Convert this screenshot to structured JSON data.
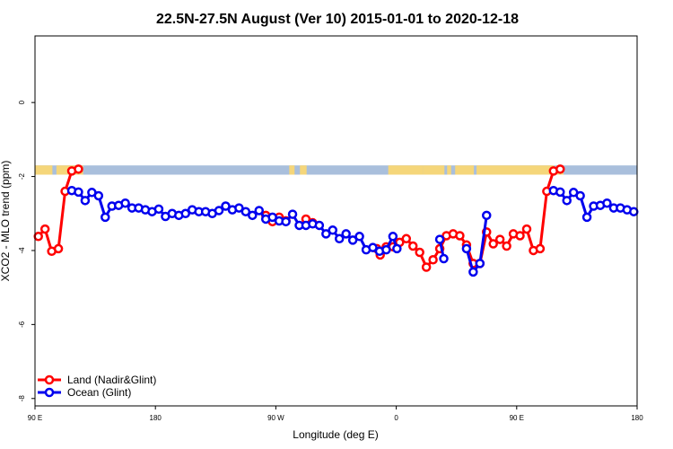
{
  "chart_data": {
    "type": "line",
    "title": "22.5N-27.5N August (Ver 10)   2015-01-01 to 2020-12-18",
    "xlabel": "Longitude (deg E)",
    "ylabel": "XCO2 - MLO trend (ppm)",
    "xlim": [
      90,
      540
    ],
    "ylim": [
      -8.2,
      1.8
    ],
    "x_ticks": [
      {
        "value": 90,
        "label": "90 E"
      },
      {
        "value": 180,
        "label": "180"
      },
      {
        "value": 270,
        "label": "90 W"
      },
      {
        "value": 360,
        "label": "0"
      },
      {
        "value": 450,
        "label": "90 E"
      },
      {
        "value": 540,
        "label": "180"
      }
    ],
    "y_ticks": [
      {
        "value": 0,
        "label": "0"
      },
      {
        "value": -2,
        "label": "-2"
      },
      {
        "value": -4,
        "label": "-4"
      },
      {
        "value": -6,
        "label": "-6"
      },
      {
        "value": -8,
        "label": "-8"
      }
    ],
    "grid": false,
    "legend_position": "bottom-left",
    "map_strip": {
      "y_top": -1.7,
      "y_bottom": -1.95,
      "ocean_color": "#a9bfdc",
      "land_color": "#f5d67a"
    },
    "series": [
      {
        "name": "Land (Nadir&Glint)",
        "color": "#ff0000",
        "segments": [
          [
            [
              92.5,
              -3.62
            ],
            [
              97.5,
              -3.42
            ],
            [
              102.5,
              -4.02
            ],
            [
              107.5,
              -3.95
            ],
            [
              112.5,
              -2.4
            ],
            [
              117.5,
              -1.85
            ],
            [
              122.5,
              -1.8
            ]
          ],
          [
            [
              262.5,
              -3.05
            ],
            [
              267.5,
              -3.22
            ],
            [
              272.5,
              -3.1
            ],
            [
              277.5,
              -3.2
            ]
          ],
          [
            [
              277.5,
              -3.2
            ]
          ],
          [
            [
              292.5,
              -3.15
            ],
            [
              297.5,
              -3.25
            ]
          ],
          [
            [
              345.5,
              -3.95
            ],
            [
              348,
              -4.12
            ],
            [
              352.5,
              -3.9
            ],
            [
              357.5,
              -3.9
            ],
            [
              362.5,
              -3.78
            ],
            [
              367.5,
              -3.68
            ],
            [
              372.5,
              -3.88
            ],
            [
              377.5,
              -4.05
            ],
            [
              382.5,
              -4.45
            ],
            [
              387.5,
              -4.25
            ],
            [
              392.5,
              -3.95
            ],
            [
              397.5,
              -3.6
            ],
            [
              402.5,
              -3.55
            ],
            [
              407.5,
              -3.6
            ],
            [
              412.5,
              -3.85
            ],
            [
              417.5,
              -4.35
            ],
            [
              422.5,
              -4.35
            ],
            [
              427.5,
              -3.5
            ],
            [
              432.5,
              -3.82
            ],
            [
              437.5,
              -3.7
            ],
            [
              442.5,
              -3.88
            ],
            [
              447.5,
              -3.55
            ],
            [
              452.5,
              -3.6
            ],
            [
              457.5,
              -3.42
            ],
            [
              462.5,
              -4.0
            ],
            [
              467.5,
              -3.95
            ],
            [
              472.5,
              -2.4
            ],
            [
              477.5,
              -1.85
            ],
            [
              482.5,
              -1.8
            ]
          ]
        ]
      },
      {
        "name": "Ocean (Glint)",
        "color": "#0000ee",
        "segments": [
          [
            [
              117.5,
              -2.38
            ],
            [
              122.5,
              -2.42
            ],
            [
              127.5,
              -2.65
            ],
            [
              132.5,
              -2.43
            ],
            [
              137.5,
              -2.52
            ],
            [
              142.5,
              -3.1
            ],
            [
              147.5,
              -2.8
            ],
            [
              152.5,
              -2.78
            ],
            [
              157.5,
              -2.72
            ],
            [
              162.5,
              -2.85
            ],
            [
              167.5,
              -2.85
            ],
            [
              172.5,
              -2.9
            ],
            [
              177.5,
              -2.95
            ],
            [
              182.5,
              -2.88
            ],
            [
              187.5,
              -3.08
            ],
            [
              192.5,
              -3.0
            ],
            [
              197.5,
              -3.05
            ],
            [
              202.5,
              -3.0
            ],
            [
              207.5,
              -2.9
            ],
            [
              212.5,
              -2.95
            ],
            [
              217.5,
              -2.95
            ],
            [
              222.5,
              -3.0
            ],
            [
              227.5,
              -2.92
            ],
            [
              232.5,
              -2.8
            ],
            [
              237.5,
              -2.9
            ],
            [
              242.5,
              -2.85
            ],
            [
              247.5,
              -2.95
            ],
            [
              252.5,
              -3.05
            ],
            [
              257.5,
              -2.92
            ],
            [
              262.5,
              -3.15
            ],
            [
              267.5,
              -3.1
            ],
            [
              272.5,
              -3.2
            ],
            [
              277.5,
              -3.22
            ],
            [
              282.5,
              -3.02
            ],
            [
              287.5,
              -3.32
            ],
            [
              292.5,
              -3.32
            ],
            [
              297.5,
              -3.28
            ],
            [
              302.5,
              -3.32
            ],
            [
              307.5,
              -3.55
            ],
            [
              312.5,
              -3.45
            ],
            [
              317.5,
              -3.68
            ],
            [
              322.5,
              -3.55
            ],
            [
              327.5,
              -3.72
            ],
            [
              332.5,
              -3.62
            ],
            [
              337.5,
              -3.98
            ],
            [
              342.5,
              -3.92
            ],
            [
              347.5,
              -4.02
            ],
            [
              352.5,
              -3.98
            ],
            [
              357.5,
              -3.62
            ],
            [
              360.5,
              -3.95
            ]
          ],
          [
            [
              392.5,
              -3.7
            ],
            [
              395.5,
              -4.22
            ]
          ],
          [
            [
              412.5,
              -3.95
            ],
            [
              417.5,
              -4.58
            ],
            [
              422.5,
              -4.35
            ],
            [
              427.5,
              -3.05
            ]
          ],
          [
            [
              477.5,
              -2.38
            ],
            [
              482.5,
              -2.42
            ],
            [
              487.5,
              -2.65
            ],
            [
              492.5,
              -2.43
            ],
            [
              497.5,
              -2.52
            ],
            [
              502.5,
              -3.1
            ],
            [
              507.5,
              -2.8
            ],
            [
              512.5,
              -2.78
            ],
            [
              517.5,
              -2.72
            ],
            [
              522.5,
              -2.85
            ],
            [
              527.5,
              -2.85
            ],
            [
              532.5,
              -2.9
            ],
            [
              537.5,
              -2.95
            ]
          ]
        ]
      }
    ]
  }
}
